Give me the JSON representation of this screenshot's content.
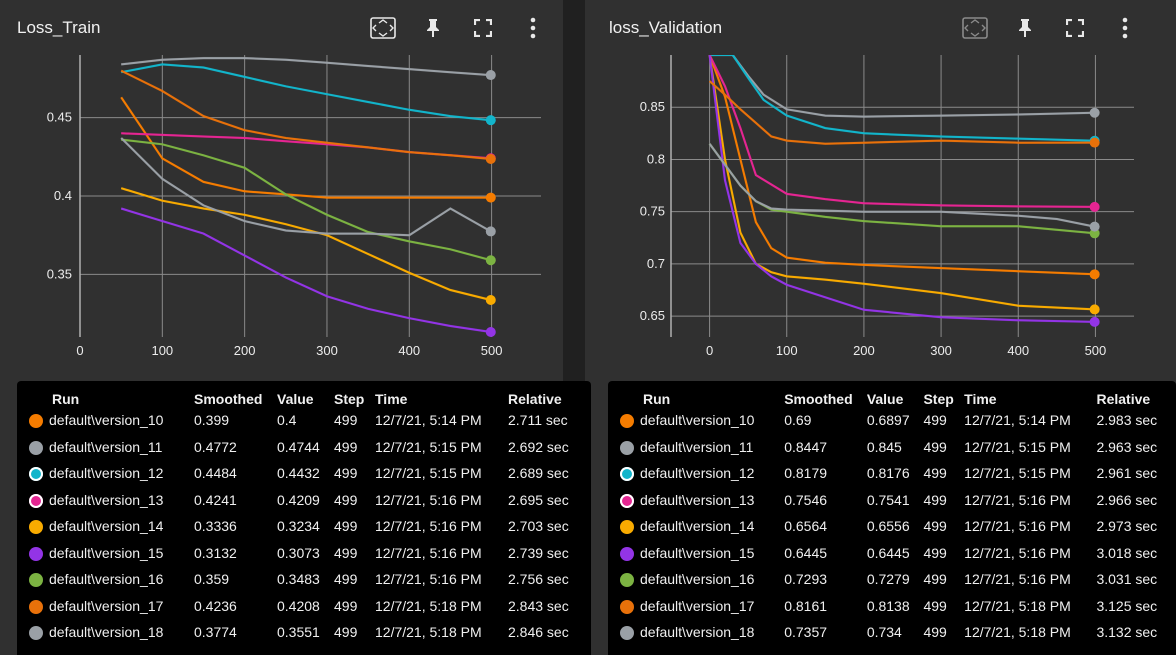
{
  "left": {
    "title": "Loss_Train",
    "table": {
      "headers": [
        "Run",
        "Smoothed",
        "Value",
        "Step",
        "Time",
        "Relative"
      ],
      "rows": [
        {
          "run": "default\\version_10",
          "smoothed": "0.399",
          "value": "0.4",
          "step": "499",
          "time": "12/7/21, 5:14 PM",
          "relative": "2.711 sec",
          "color": "#f57c00"
        },
        {
          "run": "default\\version_11",
          "smoothed": "0.4772",
          "value": "0.4744",
          "step": "499",
          "time": "12/7/21, 5:15 PM",
          "relative": "2.692 sec",
          "color": "#9aa0a6"
        },
        {
          "run": "default\\version_12",
          "smoothed": "0.4484",
          "value": "0.4432",
          "step": "499",
          "time": "12/7/21, 5:15 PM",
          "relative": "2.689 sec",
          "color": "#12b5cb"
        },
        {
          "run": "default\\version_13",
          "smoothed": "0.4241",
          "value": "0.4209",
          "step": "499",
          "time": "12/7/21, 5:16 PM",
          "relative": "2.695 sec",
          "color": "#e52592"
        },
        {
          "run": "default\\version_14",
          "smoothed": "0.3336",
          "value": "0.3234",
          "step": "499",
          "time": "12/7/21, 5:16 PM",
          "relative": "2.703 sec",
          "color": "#f9ab00"
        },
        {
          "run": "default\\version_15",
          "smoothed": "0.3132",
          "value": "0.3073",
          "step": "499",
          "time": "12/7/21, 5:16 PM",
          "relative": "2.739 sec",
          "color": "#9334e6"
        },
        {
          "run": "default\\version_16",
          "smoothed": "0.359",
          "value": "0.3483",
          "step": "499",
          "time": "12/7/21, 5:16 PM",
          "relative": "2.756 sec",
          "color": "#7cb342"
        },
        {
          "run": "default\\version_17",
          "smoothed": "0.4236",
          "value": "0.4208",
          "step": "499",
          "time": "12/7/21, 5:18 PM",
          "relative": "2.843 sec",
          "color": "#e8710a"
        },
        {
          "run": "default\\version_18",
          "smoothed": "0.3774",
          "value": "0.3551",
          "step": "499",
          "time": "12/7/21, 5:18 PM",
          "relative": "2.846 sec",
          "color": "#9aa0a6"
        }
      ]
    }
  },
  "right": {
    "title": "loss_Validation",
    "table": {
      "headers": [
        "Run",
        "Smoothed",
        "Value",
        "Step",
        "Time",
        "Relative"
      ],
      "rows": [
        {
          "run": "default\\version_10",
          "smoothed": "0.69",
          "value": "0.6897",
          "step": "499",
          "time": "12/7/21, 5:14 PM",
          "relative": "2.983 sec",
          "color": "#f57c00"
        },
        {
          "run": "default\\version_11",
          "smoothed": "0.8447",
          "value": "0.845",
          "step": "499",
          "time": "12/7/21, 5:15 PM",
          "relative": "2.963 sec",
          "color": "#9aa0a6"
        },
        {
          "run": "default\\version_12",
          "smoothed": "0.8179",
          "value": "0.8176",
          "step": "499",
          "time": "12/7/21, 5:15 PM",
          "relative": "2.961 sec",
          "color": "#12b5cb"
        },
        {
          "run": "default\\version_13",
          "smoothed": "0.7546",
          "value": "0.7541",
          "step": "499",
          "time": "12/7/21, 5:16 PM",
          "relative": "2.966 sec",
          "color": "#e52592"
        },
        {
          "run": "default\\version_14",
          "smoothed": "0.6564",
          "value": "0.6556",
          "step": "499",
          "time": "12/7/21, 5:16 PM",
          "relative": "2.973 sec",
          "color": "#f9ab00"
        },
        {
          "run": "default\\version_15",
          "smoothed": "0.6445",
          "value": "0.6445",
          "step": "499",
          "time": "12/7/21, 5:16 PM",
          "relative": "3.018 sec",
          "color": "#9334e6"
        },
        {
          "run": "default\\version_16",
          "smoothed": "0.7293",
          "value": "0.7279",
          "step": "499",
          "time": "12/7/21, 5:16 PM",
          "relative": "3.031 sec",
          "color": "#7cb342"
        },
        {
          "run": "default\\version_17",
          "smoothed": "0.8161",
          "value": "0.8138",
          "step": "499",
          "time": "12/7/21, 5:18 PM",
          "relative": "3.125 sec",
          "color": "#e8710a"
        },
        {
          "run": "default\\version_18",
          "smoothed": "0.7357",
          "value": "0.734",
          "step": "499",
          "time": "12/7/21, 5:18 PM",
          "relative": "3.132 sec",
          "color": "#9aa0a6"
        }
      ]
    }
  },
  "toolbar_icons": [
    "fit-domain-icon",
    "pin-icon",
    "fullscreen-icon",
    "more-vert-icon"
  ],
  "chart_data": [
    {
      "type": "line",
      "title": "Loss_Train",
      "xlabel": "",
      "ylabel": "",
      "xlim": [
        0,
        560
      ],
      "ylim": [
        0.31,
        0.49
      ],
      "xticks": [
        0,
        100,
        200,
        300,
        400,
        500
      ],
      "yticks": [
        0.35,
        0.4,
        0.45
      ],
      "grid": true,
      "series": [
        {
          "color": "#f57c00",
          "x": [
            50,
            100,
            150,
            200,
            250,
            300,
            350,
            400,
            450,
            499
          ],
          "y": [
            0.463,
            0.424,
            0.409,
            0.403,
            0.401,
            0.399,
            0.399,
            0.399,
            0.399,
            0.399
          ]
        },
        {
          "color": "#9aa0a6",
          "x": [
            50,
            100,
            150,
            200,
            250,
            300,
            350,
            400,
            450,
            499
          ],
          "y": [
            0.484,
            0.487,
            0.488,
            0.488,
            0.487,
            0.485,
            0.483,
            0.481,
            0.479,
            0.4772
          ]
        },
        {
          "color": "#12b5cb",
          "x": [
            50,
            100,
            150,
            200,
            250,
            300,
            350,
            400,
            450,
            499
          ],
          "y": [
            0.479,
            0.484,
            0.482,
            0.476,
            0.47,
            0.465,
            0.46,
            0.455,
            0.451,
            0.4484
          ]
        },
        {
          "color": "#e52592",
          "x": [
            50,
            100,
            150,
            200,
            250,
            300,
            350,
            400,
            450,
            499
          ],
          "y": [
            0.44,
            0.439,
            0.438,
            0.437,
            0.435,
            0.433,
            0.431,
            0.428,
            0.426,
            0.4241
          ]
        },
        {
          "color": "#f9ab00",
          "x": [
            50,
            100,
            150,
            200,
            250,
            300,
            350,
            400,
            450,
            499
          ],
          "y": [
            0.405,
            0.397,
            0.392,
            0.388,
            0.382,
            0.375,
            0.363,
            0.351,
            0.34,
            0.3336
          ]
        },
        {
          "color": "#9334e6",
          "x": [
            50,
            100,
            150,
            200,
            250,
            300,
            350,
            400,
            450,
            499
          ],
          "y": [
            0.392,
            0.384,
            0.376,
            0.362,
            0.348,
            0.336,
            0.328,
            0.322,
            0.317,
            0.3132
          ]
        },
        {
          "color": "#7cb342",
          "x": [
            50,
            100,
            150,
            200,
            250,
            300,
            350,
            400,
            450,
            499
          ],
          "y": [
            0.436,
            0.433,
            0.426,
            0.418,
            0.401,
            0.388,
            0.377,
            0.371,
            0.366,
            0.359
          ]
        },
        {
          "color": "#e8710a",
          "x": [
            50,
            100,
            150,
            200,
            250,
            300,
            350,
            400,
            450,
            499
          ],
          "y": [
            0.48,
            0.467,
            0.451,
            0.442,
            0.437,
            0.434,
            0.431,
            0.428,
            0.426,
            0.4236
          ]
        },
        {
          "color": "#9aa0a6",
          "x": [
            50,
            100,
            150,
            200,
            250,
            300,
            350,
            400,
            450,
            499
          ],
          "y": [
            0.437,
            0.411,
            0.394,
            0.384,
            0.378,
            0.376,
            0.376,
            0.375,
            0.392,
            0.3774
          ]
        }
      ]
    },
    {
      "type": "line",
      "title": "loss_Validation",
      "xlabel": "",
      "ylabel": "",
      "xlim": [
        -50,
        550
      ],
      "ylim": [
        0.63,
        0.9
      ],
      "xticks": [
        0,
        100,
        200,
        300,
        400,
        500
      ],
      "yticks": [
        0.65,
        0.7,
        0.75,
        0.8,
        0.85
      ],
      "grid": true,
      "series": [
        {
          "color": "#f57c00",
          "x": [
            0,
            20,
            40,
            60,
            80,
            100,
            150,
            200,
            300,
            400,
            499
          ],
          "y": [
            0.9,
            0.86,
            0.8,
            0.74,
            0.715,
            0.706,
            0.701,
            0.699,
            0.696,
            0.693,
            0.69
          ]
        },
        {
          "color": "#9aa0a6",
          "x": [
            0,
            30,
            50,
            70,
            100,
            150,
            200,
            300,
            400,
            499
          ],
          "y": [
            0.9,
            0.9,
            0.88,
            0.862,
            0.848,
            0.842,
            0.841,
            0.842,
            0.843,
            0.8447
          ]
        },
        {
          "color": "#12b5cb",
          "x": [
            0,
            30,
            50,
            70,
            100,
            150,
            200,
            300,
            400,
            499
          ],
          "y": [
            0.9,
            0.9,
            0.878,
            0.857,
            0.842,
            0.83,
            0.825,
            0.822,
            0.82,
            0.8179
          ]
        },
        {
          "color": "#e52592",
          "x": [
            0,
            20,
            40,
            60,
            100,
            150,
            200,
            300,
            400,
            499
          ],
          "y": [
            0.9,
            0.87,
            0.83,
            0.785,
            0.767,
            0.762,
            0.758,
            0.756,
            0.755,
            0.7546
          ]
        },
        {
          "color": "#f9ab00",
          "x": [
            0,
            20,
            40,
            60,
            80,
            100,
            150,
            200,
            300,
            400,
            499
          ],
          "y": [
            0.9,
            0.8,
            0.73,
            0.7,
            0.692,
            0.688,
            0.685,
            0.681,
            0.672,
            0.66,
            0.6564
          ]
        },
        {
          "color": "#9334e6",
          "x": [
            0,
            20,
            40,
            60,
            80,
            100,
            150,
            200,
            300,
            400,
            499
          ],
          "y": [
            0.9,
            0.78,
            0.72,
            0.7,
            0.688,
            0.68,
            0.668,
            0.656,
            0.649,
            0.646,
            0.6445
          ]
        },
        {
          "color": "#7cb342",
          "x": [
            0,
            20,
            40,
            60,
            80,
            100,
            150,
            200,
            300,
            400,
            499
          ],
          "y": [
            0.815,
            0.795,
            0.775,
            0.76,
            0.752,
            0.75,
            0.745,
            0.741,
            0.736,
            0.736,
            0.7293
          ]
        },
        {
          "color": "#e8710a",
          "x": [
            0,
            20,
            40,
            60,
            80,
            100,
            150,
            200,
            300,
            400,
            499
          ],
          "y": [
            0.875,
            0.862,
            0.848,
            0.835,
            0.822,
            0.818,
            0.815,
            0.816,
            0.818,
            0.816,
            0.8161
          ]
        },
        {
          "color": "#9aa0a6",
          "x": [
            0,
            20,
            40,
            60,
            80,
            100,
            150,
            200,
            300,
            400,
            450,
            499
          ],
          "y": [
            0.815,
            0.795,
            0.775,
            0.76,
            0.753,
            0.752,
            0.751,
            0.75,
            0.75,
            0.746,
            0.743,
            0.7357
          ]
        }
      ]
    }
  ]
}
